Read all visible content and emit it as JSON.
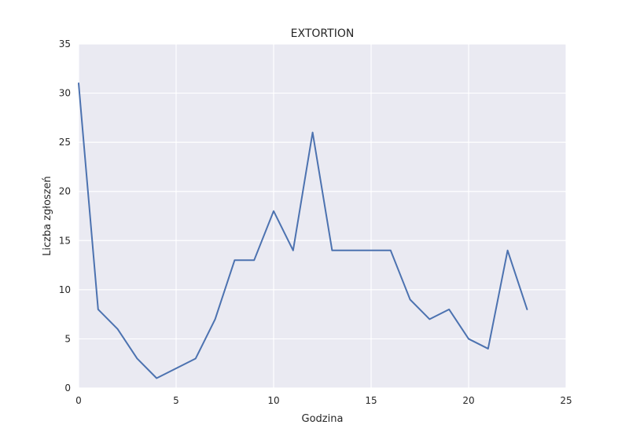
{
  "chart_data": {
    "type": "line",
    "title": "EXTORTION",
    "xlabel": "Godzina",
    "ylabel": "Liczba zgłoszeń",
    "xlim": [
      0,
      25
    ],
    "ylim": [
      0,
      35
    ],
    "xticks": [
      0,
      5,
      10,
      15,
      20,
      25
    ],
    "yticks": [
      0,
      5,
      10,
      15,
      20,
      25,
      30,
      35
    ],
    "grid": true,
    "series": [
      {
        "x": [
          0,
          1,
          2,
          3,
          4,
          5,
          6,
          7,
          8,
          9,
          10,
          11,
          12,
          13,
          14,
          15,
          16,
          17,
          18,
          19,
          20,
          21,
          22,
          23
        ],
        "values": [
          31,
          8,
          6,
          3,
          1,
          2,
          3,
          7,
          13,
          13,
          18,
          14,
          26,
          14,
          14,
          14,
          14,
          9,
          7,
          8,
          5,
          4,
          14,
          8
        ],
        "color": "#4c72b0"
      }
    ],
    "background_color": "#eaeaf2",
    "grid_color": "#ffffff"
  }
}
